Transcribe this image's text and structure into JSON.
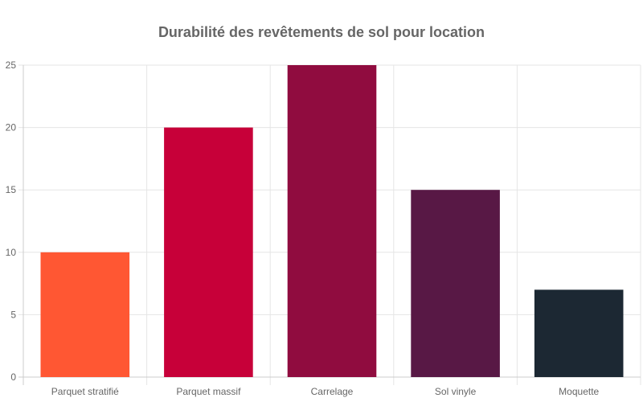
{
  "chart_data": {
    "type": "bar",
    "title": "Durabilité des revêtements de sol pour location",
    "categories": [
      "Parquet stratifié",
      "Parquet massif",
      "Carrelage",
      "Sol vinyle",
      "Moquette"
    ],
    "values": [
      10,
      20,
      25,
      15,
      7
    ],
    "colors": [
      "#FF5733",
      "#C70039",
      "#900C3F",
      "#581845",
      "#1C2833"
    ],
    "ylim": [
      0,
      25
    ],
    "yticks": [
      0,
      5,
      10,
      15,
      20,
      25
    ],
    "xlabel": "",
    "ylabel": "",
    "grid": true,
    "legend": "none"
  }
}
